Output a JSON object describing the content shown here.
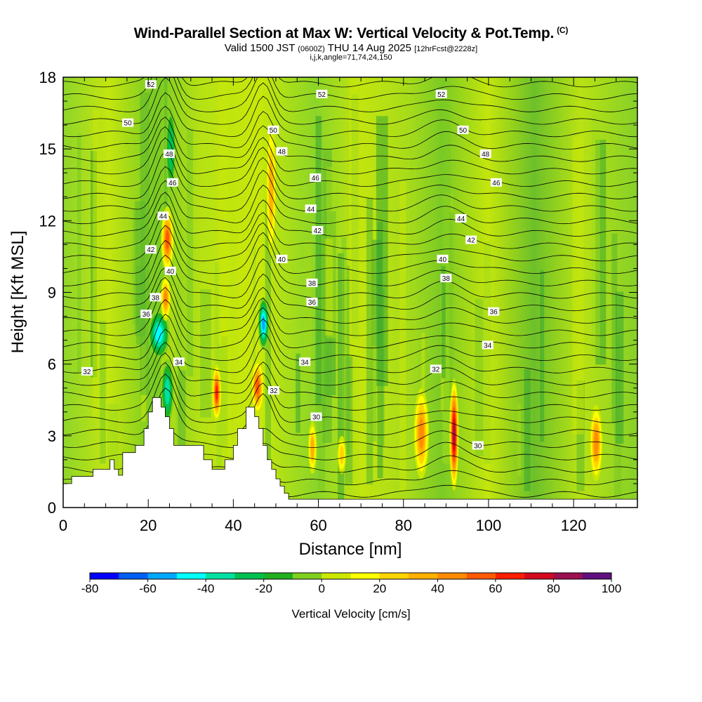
{
  "header": {
    "title": "Wind-Parallel Section at Max W: Vertical Velocity & Pot.Temp.",
    "copyright": "(C)",
    "valid_main": "Valid 1500 JST",
    "valid_utc": "(0600Z)",
    "valid_date": "THU 14 Aug 2025",
    "forecast": "[12hrFcst@2228z]",
    "indices": "i,j,k,angle=71,74,24,150"
  },
  "chart_data": {
    "type": "heatmap",
    "title": "Wind-Parallel Section at Max W: Vertical Velocity & Pot.Temp.",
    "xlabel": "Distance [nm]",
    "ylabel": "Height [Kft MSL]",
    "xlim": [
      0,
      135
    ],
    "ylim": [
      0,
      18
    ],
    "x_ticks": [
      0,
      20,
      40,
      60,
      80,
      100,
      120
    ],
    "y_ticks": [
      0,
      3,
      6,
      9,
      12,
      15,
      18
    ],
    "colorbar": {
      "label": "Vertical Velocity [cm/s]",
      "min": -80,
      "max": 100,
      "step": 10,
      "tick_labels": [
        -80,
        -60,
        -40,
        -20,
        0,
        20,
        40,
        60,
        80,
        100
      ],
      "colors": [
        "#0000ff",
        "#005ff5",
        "#00a8ff",
        "#00ffff",
        "#00e0a0",
        "#00c050",
        "#20b020",
        "#80d020",
        "#cce800",
        "#ffff00",
        "#ffd400",
        "#ffb000",
        "#ff8c00",
        "#ff5a00",
        "#ff1e00",
        "#d20a1e",
        "#9b1050",
        "#60107f"
      ]
    },
    "terrain_kft": [
      [
        0,
        1
      ],
      [
        2,
        1
      ],
      [
        2,
        1.3
      ],
      [
        7,
        1.3
      ],
      [
        7,
        1.6
      ],
      [
        11,
        1.6
      ],
      [
        11,
        2
      ],
      [
        12,
        2
      ],
      [
        12,
        1.6
      ],
      [
        13,
        1.6
      ],
      [
        13,
        1.35
      ],
      [
        14,
        1.35
      ],
      [
        14,
        2.3
      ],
      [
        17,
        2.3
      ],
      [
        17,
        2.6
      ],
      [
        19,
        2.6
      ],
      [
        19,
        3.3
      ],
      [
        20,
        3.3
      ],
      [
        20,
        4
      ],
      [
        21,
        4
      ],
      [
        21,
        4.6
      ],
      [
        23,
        4.6
      ],
      [
        23,
        4.2
      ],
      [
        24,
        4.2
      ],
      [
        24,
        3.8
      ],
      [
        25,
        3.8
      ],
      [
        25,
        3.3
      ],
      [
        26,
        3.3
      ],
      [
        26,
        2.6
      ],
      [
        27,
        2.6
      ],
      [
        27,
        2.6
      ],
      [
        33,
        2.6
      ],
      [
        33,
        2
      ],
      [
        35,
        2
      ],
      [
        35,
        1.6
      ],
      [
        38,
        1.6
      ],
      [
        38,
        2
      ],
      [
        40,
        2
      ],
      [
        40,
        2.6
      ],
      [
        41,
        2.6
      ],
      [
        41,
        3.3
      ],
      [
        43,
        3.3
      ],
      [
        43,
        4.2
      ],
      [
        45,
        4.2
      ],
      [
        45,
        3.8
      ],
      [
        46,
        3.8
      ],
      [
        46,
        3.3
      ],
      [
        47,
        3.3
      ],
      [
        47,
        2.6
      ],
      [
        48,
        2.6
      ],
      [
        48,
        2
      ],
      [
        49,
        2
      ],
      [
        49,
        1.6
      ],
      [
        50,
        1.6
      ],
      [
        50,
        1.2
      ],
      [
        51,
        1.2
      ],
      [
        51,
        0.9
      ],
      [
        52,
        0.9
      ],
      [
        52,
        0.6
      ],
      [
        53,
        0.6
      ],
      [
        53,
        0.35
      ],
      [
        135,
        0.35
      ]
    ],
    "theta_labels": [
      {
        "x": 20.6,
        "y": 17.7,
        "t": "52"
      },
      {
        "x": 60.8,
        "y": 17.3,
        "t": "52"
      },
      {
        "x": 88.9,
        "y": 17.3,
        "t": "52"
      },
      {
        "x": 15.2,
        "y": 16.1,
        "t": "50"
      },
      {
        "x": 49.4,
        "y": 15.8,
        "t": "50"
      },
      {
        "x": 94,
        "y": 15.8,
        "t": "50"
      },
      {
        "x": 24.9,
        "y": 14.8,
        "t": "48"
      },
      {
        "x": 51.4,
        "y": 14.9,
        "t": "48"
      },
      {
        "x": 99.3,
        "y": 14.8,
        "t": "48"
      },
      {
        "x": 25.7,
        "y": 13.6,
        "t": "46"
      },
      {
        "x": 59.3,
        "y": 13.8,
        "t": "46"
      },
      {
        "x": 101.8,
        "y": 13.6,
        "t": "46"
      },
      {
        "x": 23.5,
        "y": 12.2,
        "t": "44"
      },
      {
        "x": 58.2,
        "y": 12.5,
        "t": "44"
      },
      {
        "x": 93.5,
        "y": 12.1,
        "t": "44"
      },
      {
        "x": 20.6,
        "y": 10.8,
        "t": "42"
      },
      {
        "x": 59.8,
        "y": 11.6,
        "t": "42"
      },
      {
        "x": 95.9,
        "y": 11.2,
        "t": "42"
      },
      {
        "x": 25.2,
        "y": 9.9,
        "t": "40"
      },
      {
        "x": 51.4,
        "y": 10.4,
        "t": "40"
      },
      {
        "x": 89.2,
        "y": 10.4,
        "t": "40"
      },
      {
        "x": 21.7,
        "y": 8.8,
        "t": "38"
      },
      {
        "x": 58.5,
        "y": 9.4,
        "t": "38"
      },
      {
        "x": 90,
        "y": 9.6,
        "t": "38"
      },
      {
        "x": 19.5,
        "y": 8.1,
        "t": "36"
      },
      {
        "x": 58.5,
        "y": 8.6,
        "t": "36"
      },
      {
        "x": 101.2,
        "y": 8.2,
        "t": "36"
      },
      {
        "x": 5.6,
        "y": 5.7,
        "t": "32"
      },
      {
        "x": 27.2,
        "y": 6.1,
        "t": "34"
      },
      {
        "x": 56.8,
        "y": 6.1,
        "t": "34"
      },
      {
        "x": 99.8,
        "y": 6.8,
        "t": "34"
      },
      {
        "x": 49.5,
        "y": 4.9,
        "t": "32"
      },
      {
        "x": 87.6,
        "y": 5.8,
        "t": "32"
      },
      {
        "x": 59.5,
        "y": 3.8,
        "t": "30"
      },
      {
        "x": 97.5,
        "y": 2.6,
        "t": "30"
      }
    ],
    "w_cells": [
      {
        "x": 22.5,
        "w": 5,
        "y0": 6.2,
        "y1": 8.3,
        "v": -45
      },
      {
        "x": 24.5,
        "w": 3,
        "y0": 3.5,
        "y1": 6.2,
        "v": -35
      },
      {
        "x": 25.3,
        "w": 2.4,
        "y0": 13.2,
        "y1": 16.8,
        "v": -30
      },
      {
        "x": 24.5,
        "w": 3,
        "y0": 9.8,
        "y1": 12.6,
        "v": 60
      },
      {
        "x": 24.1,
        "w": 2.4,
        "y0": 7.8,
        "y1": 9.7,
        "v": 45
      },
      {
        "x": 36.1,
        "w": 2.2,
        "y0": 3.6,
        "y1": 6,
        "v": 70
      },
      {
        "x": 45.7,
        "w": 3,
        "y0": 3.9,
        "y1": 6.2,
        "v": 60
      },
      {
        "x": 47.1,
        "w": 2.5,
        "y0": 6.6,
        "y1": 8.8,
        "v": -60
      },
      {
        "x": 48.9,
        "w": 2.3,
        "y0": 10.5,
        "y1": 16.2,
        "v": 40
      },
      {
        "x": 84.2,
        "w": 3.6,
        "y0": 1.2,
        "y1": 5,
        "v": 50
      },
      {
        "x": 91.9,
        "w": 2.2,
        "y0": 0.7,
        "y1": 5.4,
        "v": 85
      },
      {
        "x": 125.3,
        "w": 3,
        "y0": 1.1,
        "y1": 4.3,
        "v": 50
      },
      {
        "x": 58.6,
        "w": 2,
        "y0": 1.4,
        "y1": 3.6,
        "v": 35
      },
      {
        "x": 65.5,
        "w": 2,
        "y0": 1.4,
        "y1": 3,
        "v": 25
      }
    ]
  }
}
